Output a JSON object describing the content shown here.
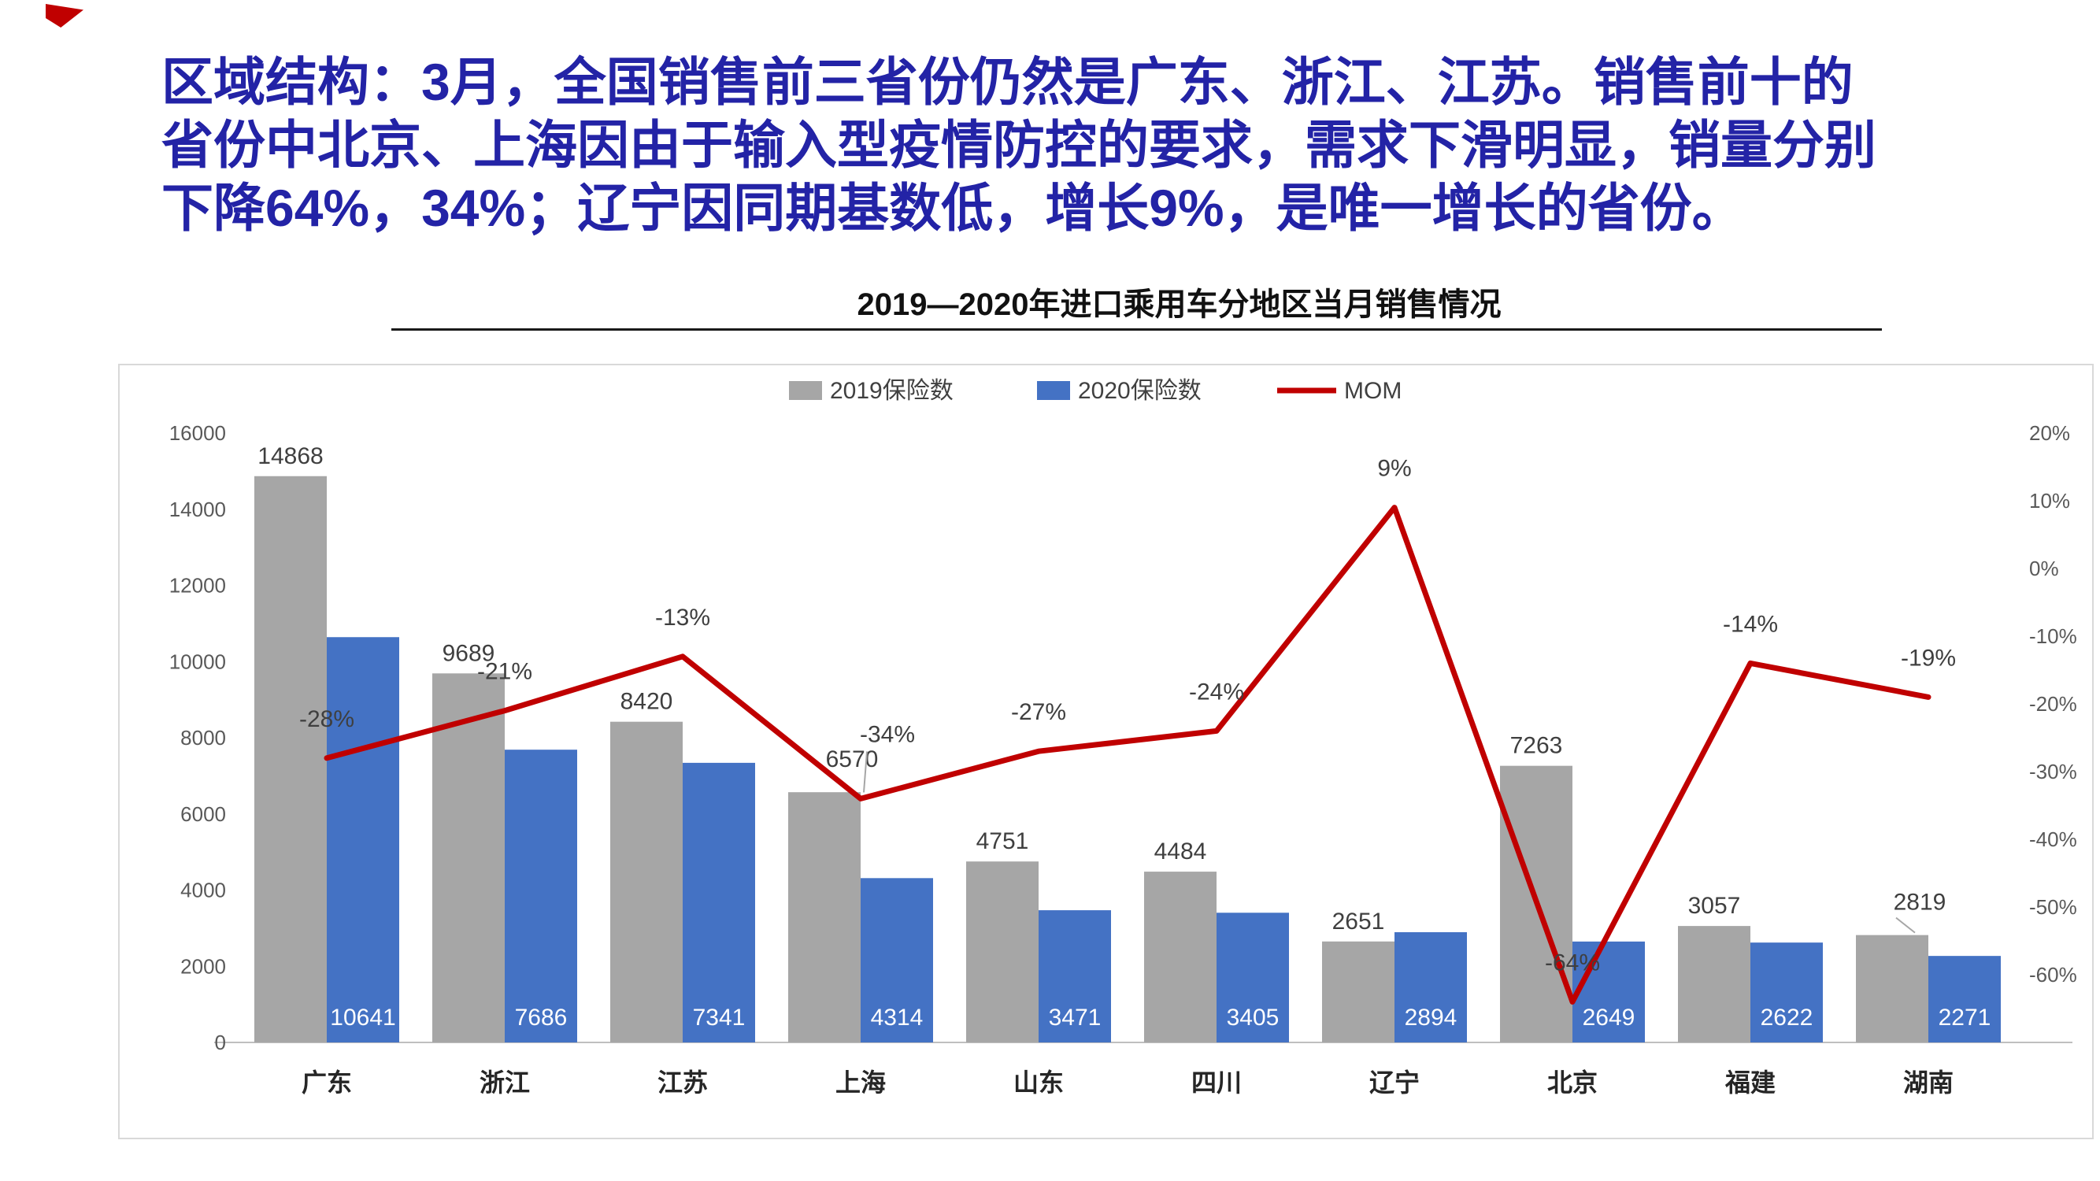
{
  "page": {
    "heading_lines": [
      "区域结构：3月，全国销售前三省份仍然是广东、浙江、江苏。销售前十的",
      "省份中北京、上海因由于输入型疫情防控的要求，需求下滑明显，销量分别",
      "下降64%，34%；辽宁因同期基数低，增长9%，是唯一增长的省份。"
    ]
  },
  "chart_data": {
    "type": "bar",
    "title": "2019—2020年进口乘用车分地区当月销售情况",
    "categories": [
      "广东",
      "浙江",
      "江苏",
      "上海",
      "山东",
      "四川",
      "辽宁",
      "北京",
      "福建",
      "湖南"
    ],
    "series": [
      {
        "name": "2019保险数",
        "type": "bar",
        "axis": "left",
        "color": "#a6a6a6",
        "values": [
          14868,
          9689,
          8420,
          6570,
          4751,
          4484,
          2651,
          7263,
          3057,
          2819
        ]
      },
      {
        "name": "2020保险数",
        "type": "bar",
        "axis": "left",
        "color": "#4472c4",
        "values": [
          10641,
          7686,
          7341,
          4314,
          3471,
          3405,
          2894,
          2649,
          2622,
          2271
        ]
      },
      {
        "name": "MOM",
        "type": "line",
        "axis": "right",
        "color": "#c00000",
        "values": [
          -28,
          -21,
          -13,
          -34,
          -27,
          -24,
          9,
          -64,
          -14,
          -19
        ],
        "labels": [
          "-28%",
          "-21%",
          "-13%",
          "-34%",
          "-27%",
          "-24%",
          "9%",
          "-64%",
          "-14%",
          "-19%"
        ]
      }
    ],
    "left_axis": {
      "min": 0,
      "max": 16000,
      "ticks": [
        0,
        2000,
        4000,
        6000,
        8000,
        10000,
        12000,
        14000,
        16000
      ]
    },
    "right_axis": {
      "min": -70,
      "max": 20,
      "tick_values": [
        20,
        10,
        0,
        -10,
        -20,
        -30,
        -40,
        -50,
        -60
      ],
      "tick_labels": [
        "20%",
        "10%",
        "0%",
        "-10%",
        "-20%",
        "-30%",
        "-40%",
        "-50%",
        "-60%"
      ]
    },
    "legend_position": "top",
    "grid": false
  }
}
